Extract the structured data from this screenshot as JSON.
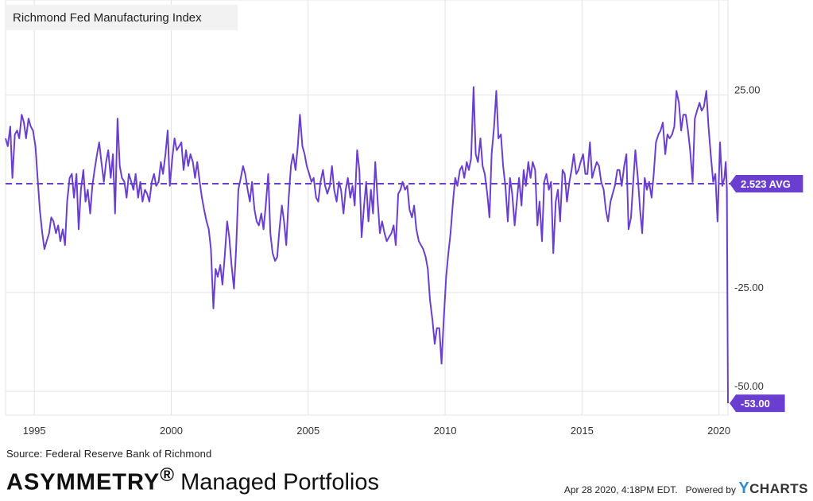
{
  "chart_data": {
    "type": "line",
    "title": "Richmond Fed Manufacturing Index",
    "series": [
      {
        "name": "Richmond Fed Manufacturing Index",
        "color": "#6A3FD0"
      }
    ],
    "x_range": [
      1993.95,
      2020.33
    ],
    "ylim": [
      -56,
      49
    ],
    "y_ticks": [
      25,
      -25,
      -50
    ],
    "y_tick_labels": [
      "25.00",
      "-25.00",
      "-50.00"
    ],
    "x_ticks": [
      1995,
      2000,
      2005,
      2010,
      2015,
      2020
    ],
    "x_tick_labels": [
      "1995",
      "2000",
      "2005",
      "2010",
      "2015",
      "2020"
    ],
    "average": 2.523,
    "average_label": "2.523 AVG",
    "last_value": -53.0,
    "last_value_label": "-53.00",
    "grid": true,
    "points": [
      [
        1993.95,
        14
      ],
      [
        1994.03,
        12
      ],
      [
        1994.12,
        17
      ],
      [
        1994.2,
        4
      ],
      [
        1994.29,
        15
      ],
      [
        1994.37,
        16
      ],
      [
        1994.45,
        14
      ],
      [
        1994.54,
        20
      ],
      [
        1994.62,
        18
      ],
      [
        1994.7,
        14
      ],
      [
        1994.79,
        19
      ],
      [
        1994.87,
        17
      ],
      [
        1994.95,
        16
      ],
      [
        1995.04,
        12
      ],
      [
        1995.12,
        4
      ],
      [
        1995.2,
        -4
      ],
      [
        1995.29,
        -10
      ],
      [
        1995.37,
        -14
      ],
      [
        1995.45,
        -12
      ],
      [
        1995.54,
        -10
      ],
      [
        1995.62,
        -6
      ],
      [
        1995.7,
        -7
      ],
      [
        1995.79,
        -10
      ],
      [
        1995.87,
        -8
      ],
      [
        1995.95,
        -12
      ],
      [
        1996.04,
        -9
      ],
      [
        1996.12,
        -13
      ],
      [
        1996.2,
        -2
      ],
      [
        1996.29,
        4
      ],
      [
        1996.37,
        5
      ],
      [
        1996.45,
        -1
      ],
      [
        1996.54,
        5
      ],
      [
        1996.62,
        -9
      ],
      [
        1996.7,
        1
      ],
      [
        1996.79,
        6
      ],
      [
        1996.87,
        -2
      ],
      [
        1996.95,
        1
      ],
      [
        1997.04,
        -5
      ],
      [
        1997.12,
        2
      ],
      [
        1997.2,
        6
      ],
      [
        1997.29,
        10
      ],
      [
        1997.37,
        13
      ],
      [
        1997.45,
        8
      ],
      [
        1997.54,
        3
      ],
      [
        1997.62,
        8
      ],
      [
        1997.7,
        11
      ],
      [
        1997.79,
        4
      ],
      [
        1997.87,
        10
      ],
      [
        1997.95,
        -5
      ],
      [
        1998.04,
        19
      ],
      [
        1998.12,
        7
      ],
      [
        1998.2,
        4
      ],
      [
        1998.29,
        3
      ],
      [
        1998.37,
        -1
      ],
      [
        1998.45,
        5
      ],
      [
        1998.54,
        3
      ],
      [
        1998.62,
        1
      ],
      [
        1998.7,
        5
      ],
      [
        1998.79,
        -1
      ],
      [
        1998.87,
        3
      ],
      [
        1998.95,
        -2
      ],
      [
        1999.04,
        1
      ],
      [
        1999.12,
        0
      ],
      [
        1999.2,
        -2
      ],
      [
        1999.29,
        3
      ],
      [
        1999.37,
        5
      ],
      [
        1999.45,
        2
      ],
      [
        1999.54,
        3
      ],
      [
        1999.62,
        8
      ],
      [
        1999.7,
        5
      ],
      [
        1999.79,
        10
      ],
      [
        1999.87,
        16
      ],
      [
        1999.95,
        2
      ],
      [
        2000.04,
        9
      ],
      [
        2000.12,
        14
      ],
      [
        2000.2,
        11
      ],
      [
        2000.29,
        12
      ],
      [
        2000.37,
        13
      ],
      [
        2000.45,
        6
      ],
      [
        2000.54,
        11
      ],
      [
        2000.62,
        7
      ],
      [
        2000.7,
        10
      ],
      [
        2000.79,
        8
      ],
      [
        2000.87,
        4
      ],
      [
        2000.95,
        8
      ],
      [
        2001.04,
        3
      ],
      [
        2001.12,
        -1
      ],
      [
        2001.2,
        -4
      ],
      [
        2001.29,
        -7
      ],
      [
        2001.37,
        -9
      ],
      [
        2001.45,
        -14
      ],
      [
        2001.54,
        -29
      ],
      [
        2001.62,
        -19
      ],
      [
        2001.7,
        -21
      ],
      [
        2001.79,
        -18
      ],
      [
        2001.87,
        -23
      ],
      [
        2001.95,
        -16
      ],
      [
        2002.04,
        -7
      ],
      [
        2002.12,
        -11
      ],
      [
        2002.2,
        -18
      ],
      [
        2002.29,
        -24
      ],
      [
        2002.37,
        -14
      ],
      [
        2002.45,
        1
      ],
      [
        2002.54,
        4
      ],
      [
        2002.62,
        7
      ],
      [
        2002.7,
        5
      ],
      [
        2002.79,
        1
      ],
      [
        2002.87,
        -2
      ],
      [
        2002.95,
        3
      ],
      [
        2003.04,
        -4
      ],
      [
        2003.12,
        -7
      ],
      [
        2003.2,
        -8
      ],
      [
        2003.29,
        -5
      ],
      [
        2003.37,
        -9
      ],
      [
        2003.45,
        -3
      ],
      [
        2003.54,
        5
      ],
      [
        2003.62,
        -10
      ],
      [
        2003.7,
        -15
      ],
      [
        2003.79,
        -17
      ],
      [
        2003.87,
        -16
      ],
      [
        2003.95,
        -9
      ],
      [
        2004.04,
        -3
      ],
      [
        2004.12,
        -7
      ],
      [
        2004.2,
        -13
      ],
      [
        2004.29,
        -1
      ],
      [
        2004.37,
        7
      ],
      [
        2004.45,
        10
      ],
      [
        2004.54,
        6
      ],
      [
        2004.62,
        12
      ],
      [
        2004.7,
        20
      ],
      [
        2004.79,
        12
      ],
      [
        2004.87,
        10
      ],
      [
        2004.95,
        7
      ],
      [
        2005.04,
        5
      ],
      [
        2005.12,
        3
      ],
      [
        2005.2,
        4
      ],
      [
        2005.29,
        -1
      ],
      [
        2005.37,
        -2
      ],
      [
        2005.45,
        3
      ],
      [
        2005.54,
        6
      ],
      [
        2005.62,
        2
      ],
      [
        2005.7,
        0
      ],
      [
        2005.79,
        2
      ],
      [
        2005.87,
        7
      ],
      [
        2005.95,
        1
      ],
      [
        2006.04,
        -2
      ],
      [
        2006.12,
        3
      ],
      [
        2006.2,
        1
      ],
      [
        2006.29,
        -5
      ],
      [
        2006.37,
        1
      ],
      [
        2006.45,
        4
      ],
      [
        2006.54,
        -1
      ],
      [
        2006.62,
        2
      ],
      [
        2006.7,
        -3
      ],
      [
        2006.79,
        11
      ],
      [
        2006.87,
        6
      ],
      [
        2006.95,
        -11
      ],
      [
        2007.04,
        -3
      ],
      [
        2007.12,
        3
      ],
      [
        2007.2,
        -7
      ],
      [
        2007.29,
        1
      ],
      [
        2007.37,
        -5
      ],
      [
        2007.45,
        8
      ],
      [
        2007.54,
        -2
      ],
      [
        2007.62,
        -10
      ],
      [
        2007.7,
        -7
      ],
      [
        2007.79,
        -10
      ],
      [
        2007.87,
        -12
      ],
      [
        2007.95,
        -11
      ],
      [
        2008.04,
        -10
      ],
      [
        2008.12,
        -8
      ],
      [
        2008.2,
        -13
      ],
      [
        2008.29,
        0
      ],
      [
        2008.37,
        1
      ],
      [
        2008.45,
        3
      ],
      [
        2008.54,
        1
      ],
      [
        2008.62,
        2
      ],
      [
        2008.7,
        -4
      ],
      [
        2008.79,
        -6
      ],
      [
        2008.87,
        -3
      ],
      [
        2008.95,
        -9
      ],
      [
        2009.04,
        -12
      ],
      [
        2009.12,
        -13
      ],
      [
        2009.2,
        -14
      ],
      [
        2009.29,
        -16
      ],
      [
        2009.37,
        -19
      ],
      [
        2009.45,
        -27
      ],
      [
        2009.54,
        -32
      ],
      [
        2009.62,
        -38
      ],
      [
        2009.7,
        -34
      ],
      [
        2009.79,
        -34
      ],
      [
        2009.87,
        -43
      ],
      [
        2009.95,
        -32
      ],
      [
        2010.04,
        -21
      ],
      [
        2010.12,
        -15
      ],
      [
        2010.2,
        -10
      ],
      [
        2010.29,
        -2
      ],
      [
        2010.37,
        4
      ],
      [
        2010.45,
        2
      ],
      [
        2010.54,
        6
      ],
      [
        2010.62,
        7
      ],
      [
        2010.7,
        4
      ],
      [
        2010.79,
        8
      ],
      [
        2010.87,
        6
      ],
      [
        2010.95,
        9
      ],
      [
        2011.04,
        27
      ],
      [
        2011.12,
        10
      ],
      [
        2011.2,
        8
      ],
      [
        2011.29,
        14
      ],
      [
        2011.37,
        7
      ],
      [
        2011.45,
        5
      ],
      [
        2011.54,
        0
      ],
      [
        2011.62,
        -6
      ],
      [
        2011.7,
        10
      ],
      [
        2011.79,
        17
      ],
      [
        2011.87,
        26
      ],
      [
        2011.95,
        14
      ],
      [
        2012.04,
        15
      ],
      [
        2012.12,
        7
      ],
      [
        2012.2,
        2
      ],
      [
        2012.29,
        -7
      ],
      [
        2012.37,
        4
      ],
      [
        2012.45,
        0
      ],
      [
        2012.54,
        -8
      ],
      [
        2012.62,
        -2
      ],
      [
        2012.7,
        4
      ],
      [
        2012.79,
        -3
      ],
      [
        2012.87,
        6
      ],
      [
        2012.95,
        2
      ],
      [
        2013.04,
        8
      ],
      [
        2013.12,
        4
      ],
      [
        2013.2,
        8
      ],
      [
        2013.29,
        6
      ],
      [
        2013.37,
        -8
      ],
      [
        2013.45,
        -2
      ],
      [
        2013.54,
        -12
      ],
      [
        2013.62,
        3
      ],
      [
        2013.7,
        5
      ],
      [
        2013.79,
        1
      ],
      [
        2013.87,
        3
      ],
      [
        2013.95,
        -15
      ],
      [
        2014.04,
        -2
      ],
      [
        2014.12,
        1
      ],
      [
        2014.2,
        -7
      ],
      [
        2014.29,
        6
      ],
      [
        2014.37,
        5
      ],
      [
        2014.45,
        -2
      ],
      [
        2014.54,
        3
      ],
      [
        2014.62,
        6
      ],
      [
        2014.7,
        10
      ],
      [
        2014.79,
        5
      ],
      [
        2014.87,
        6
      ],
      [
        2014.95,
        8
      ],
      [
        2015.04,
        10
      ],
      [
        2015.12,
        5
      ],
      [
        2015.2,
        5
      ],
      [
        2015.29,
        13
      ],
      [
        2015.37,
        4
      ],
      [
        2015.45,
        6
      ],
      [
        2015.54,
        8
      ],
      [
        2015.62,
        7
      ],
      [
        2015.7,
        3
      ],
      [
        2015.79,
        1
      ],
      [
        2015.87,
        -4
      ],
      [
        2015.95,
        -7
      ],
      [
        2016.04,
        -2
      ],
      [
        2016.12,
        0
      ],
      [
        2016.2,
        2
      ],
      [
        2016.29,
        6
      ],
      [
        2016.37,
        6
      ],
      [
        2016.45,
        2
      ],
      [
        2016.54,
        7
      ],
      [
        2016.62,
        10
      ],
      [
        2016.7,
        -9
      ],
      [
        2016.79,
        -6
      ],
      [
        2016.87,
        3
      ],
      [
        2016.95,
        11
      ],
      [
        2017.04,
        4
      ],
      [
        2017.12,
        -4
      ],
      [
        2017.2,
        -10
      ],
      [
        2017.29,
        4
      ],
      [
        2017.37,
        1
      ],
      [
        2017.45,
        3
      ],
      [
        2017.54,
        -1
      ],
      [
        2017.62,
        5
      ],
      [
        2017.7,
        13
      ],
      [
        2017.79,
        15
      ],
      [
        2017.87,
        16
      ],
      [
        2017.95,
        18
      ],
      [
        2018.04,
        10
      ],
      [
        2018.12,
        15
      ],
      [
        2018.2,
        14
      ],
      [
        2018.29,
        15
      ],
      [
        2018.37,
        17
      ],
      [
        2018.45,
        26
      ],
      [
        2018.54,
        23
      ],
      [
        2018.62,
        16
      ],
      [
        2018.7,
        20
      ],
      [
        2018.79,
        20
      ],
      [
        2018.87,
        16
      ],
      [
        2018.95,
        11
      ],
      [
        2019.04,
        3
      ],
      [
        2019.12,
        19
      ],
      [
        2019.2,
        21
      ],
      [
        2019.29,
        23
      ],
      [
        2019.37,
        21
      ],
      [
        2019.45,
        22
      ],
      [
        2019.54,
        26
      ],
      [
        2019.62,
        17
      ],
      [
        2019.7,
        10
      ],
      [
        2019.79,
        3
      ],
      [
        2019.87,
        5
      ],
      [
        2019.95,
        -7
      ],
      [
        2020.04,
        13
      ],
      [
        2020.12,
        2
      ],
      [
        2020.2,
        4
      ],
      [
        2020.25,
        8
      ],
      [
        2020.29,
        1
      ],
      [
        2020.33,
        -53
      ]
    ]
  },
  "footer": {
    "source": "Source: Federal Reserve Bank of Richmond",
    "brand_strong": "ASYMMETRY",
    "brand_reg": "®",
    "brand_rest": " Managed Portfolios",
    "timestamp": "Apr 28 2020, 4:18PM EDT.",
    "powered_by": "Powered by",
    "logo_y": "Y",
    "logo_rest": "CHARTS"
  },
  "colors": {
    "series": "#6A3FD0",
    "badge": "#6A3FD0",
    "grid": "#E4E4E4",
    "title_bg": "#F2F2F2"
  }
}
